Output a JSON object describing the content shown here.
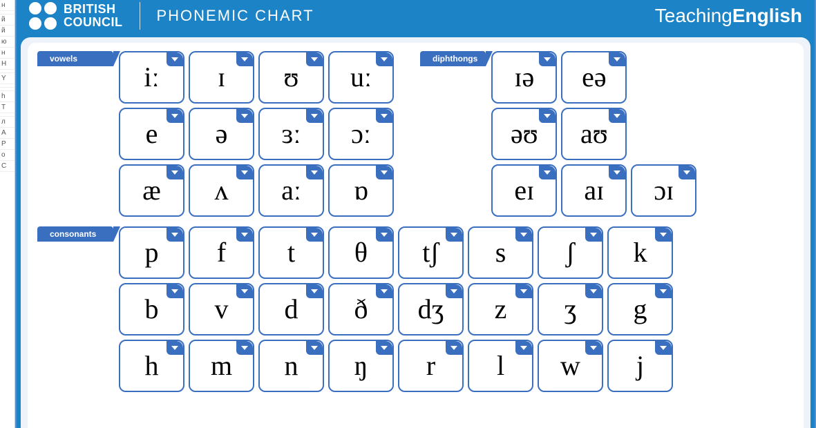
{
  "colors": {
    "header_bg": "#1b83c6",
    "accent": "#3a6fc0",
    "cell_border": "#3a6fc0",
    "corner_bg": "#3a6fc0",
    "area_bg": "#eef3fa"
  },
  "header": {
    "org_line1": "BRITISH",
    "org_line2": "COUNCIL",
    "title": "PHONEMIC CHART",
    "brand_left": "Teaching",
    "brand_right": "English"
  },
  "sidebar_fragments": [
    "н",
    "",
    "й",
    "й",
    "ю",
    "н",
    "Н",
    "",
    "Y",
    "",
    "",
    "h",
    "T",
    "",
    "л",
    "А",
    "Р",
    "о",
    "С"
  ],
  "sections": {
    "vowels": {
      "label": "vowels",
      "cols": 4,
      "cells": [
        "iː",
        "ɪ",
        "ʊ",
        "uː",
        "e",
        "ə",
        "ɜː",
        "ɔː",
        "æ",
        "ʌ",
        "aː",
        "ɒ"
      ]
    },
    "diphthongs": {
      "label": "diphthongs",
      "cols": 3,
      "cells": [
        "ɪə",
        "eə",
        "",
        "əʊ",
        "aʊ",
        "",
        "eɪ",
        "aɪ",
        "ɔɪ"
      ]
    },
    "consonants": {
      "label": "consonants",
      "cols": 8,
      "cells": [
        "p",
        "f",
        "t",
        "θ",
        "tʃ",
        "s",
        "ʃ",
        "k",
        "b",
        "v",
        "d",
        "ð",
        "dʒ",
        "z",
        "ʒ",
        "g",
        "h",
        "m",
        "n",
        "ŋ",
        "r",
        "l",
        "w",
        "j"
      ]
    }
  }
}
